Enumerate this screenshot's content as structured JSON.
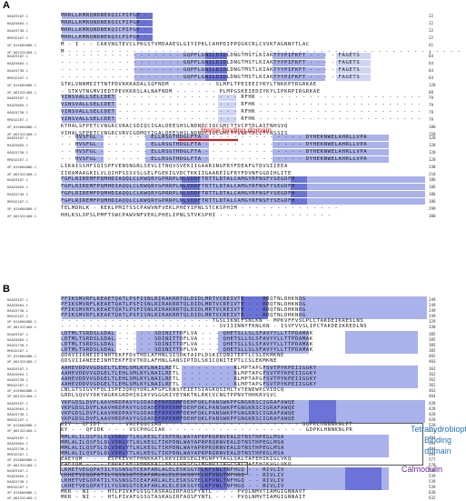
{
  "panels": {
    "a": "A",
    "b": "B"
  },
  "annotations": {
    "heme": "Heme binding domain",
    "thbd_line1": "Tetrahydrobiopterin-",
    "thbd_line2": "Binding domain",
    "calmodulin": "Calmodulin"
  },
  "colors": {
    "strong": "#6b73d8",
    "medium": "#a9b2ea",
    "weak": "#cfd4f4",
    "heme": "#e11111",
    "thbd": "#1f74b8",
    "calm": "#6a2a9b"
  },
  "blocksA": [
    {
      "rows": [
        {
          "name": "RAQ29187.1",
          "seq": "MRRLLKMRQNDNEKQICPIPGP -",
          "num": "22"
        },
        {
          "name": "RAQ25664.1",
          "seq": "MRRLLKMRQNDNEKQICPIPGP -",
          "num": "22"
        },
        {
          "name": "RAQ25730.1",
          "seq": "MRRLLKMRQNDNEKQICPIPGP -",
          "num": "22"
        },
        {
          "name": "RMZ42207.1",
          "seq": "MRRLLKMRQNDNEKQICPIPGP -",
          "num": "22"
        },
        {
          "name": "XP_015604886.1",
          "seq": "M - I - - CAKVNGTEVCLPKGSTVMDAAESLGIYIPKLCAHPDIPPQGKCRLCVVKTAGNNYTLAC",
          "num": "61"
        },
        {
          "name": "XP_001322460.1",
          "seq": "M - - - - - - - - - - - - - - - - - - - - - - - - - - - - - - - - - - - - - - - - - - - - - - - - - - - - - - -",
          "num": "1"
        }
      ]
    },
    {
      "rows": [
        {
          "name": "RAQ29187.1",
          "seq": "- - - - - - - - - - - - - - - - - GQPFLGNILDIDLDNGTMSTLKIAKTYYPIFKFT - - - - FAGETS",
          "num": "64"
        },
        {
          "name": "RAQ25664.1",
          "seq": "- - - - - - - - - - - - - - - - - GQPFLGNILDIDLDNGTMSTLKIAKTYYPIFKFT - - - - FAGETS",
          "num": "64"
        },
        {
          "name": "RAQ25730.1",
          "seq": "- - - - - - - - - - - - - - - - - GQPFLGNILDIDLDNGTMSTLKIAKTYYPIFKFT - - - - FAGETS",
          "num": "64"
        },
        {
          "name": "RMZ42207.1",
          "seq": "- - - - - - - - - - - - - - - - - GQPFLGNILDIDLDNGTMSTLKIAKTYYPIFKFT - - - - FAGETS",
          "num": "64"
        },
        {
          "name": "XP_015604886.1",
          "seq": "STKLVNNMEITTNTPDVKKKADALSQFNDM - - - - - - SLMPLTPEIEEIYKYLTNKKPTRGRKAE",
          "num": "120"
        },
        {
          "name": "XP_001322460.1",
          "seq": "- STKVTNGMVIEDTPEVKKRSLALNAFNDM - - - - - - PLMPGSKEIEDIYKYLIPKRPIRGRKAE",
          "num": "60"
        }
      ]
    },
    {
      "rows": [
        {
          "name": "RAQ29187.1",
          "seq": "VINSVALLSELCDET - - - - - - - - - - - - - - - - - RFHK - - - - - - - - - - - - - - - - - - - - - - -",
          "num": "79"
        },
        {
          "name": "RAQ25664.1",
          "seq": "VINSVALLSELCDET - - - - - - - - - - - - - - - - - RFHK - - - - - - - - - - - - - - - - - - - - - - -",
          "num": "79"
        },
        {
          "name": "RAQ25730.1",
          "seq": "VINSVALLSELCDET - - - - - - - - - - - - - - - - - RFHK - - - - - - - - - - - - - - - - - - - - - - -",
          "num": "79"
        },
        {
          "name": "RMZ42207.1",
          "seq": "VINSVALLSELCDET - - - - - - - - - - - - - - - - - RFHK - - - - - - - - - - - - - - - - - - - - - - -",
          "num": "79"
        },
        {
          "name": "XP_015604886.1",
          "seq": "KTHALSFPETCVNGRCVRACSDIQCIGALDEESHSLNDNDCIQCGMCTTVCPTDLAITNHSVQ",
          "num": "180"
        },
        {
          "name": "XP_001322460.1",
          "seq": "VIHALSFPETCVNGRCVRVCGDMQYIGALDEESHSLNDNDCIQCGMCTTVCPTDCLTYNSSIS",
          "num": "150"
        }
      ]
    },
    {
      "rows": [
        {
          "name": "RAQ29187.1",
          "seq": "- - HVSFGL - - - - - - - ELLRSGTHDGLFTA - - - - - - - - - - - - - - DYHEKNWELAHRLLVPA",
          "num": "120"
        },
        {
          "name": "RAQ25664.1",
          "seq": "- - HVSFGL - - - - - - - ELLRSGTHDGLFTA - - - - - - - - - - - - - - DYHEKNWELAHRLLVPA",
          "num": "120"
        },
        {
          "name": "RAQ25730.1",
          "seq": "- - HVSFGL - - - - - - - ELLRSGTHDGLFTA - - - - - - - - - - - - - - DYHEKNWELAHRLLVPA",
          "num": "120"
        },
        {
          "name": "RMZ42207.1",
          "seq": "- - HVSFGL - - - - - - - ELLRSGTHDGLFTA - - - - - - - - - - - - - - DYHEKNWELAHRLLVPA",
          "num": "120"
        },
        {
          "name": "XP_015604886.1",
          "seq": "LIKAISSHFIQISPFVENSNGRLSEVLITNQVSVEKIIGAARINGFRYFDEAFGTDVSIIEEA",
          "num": "240"
        },
        {
          "name": "XP_001322460.1",
          "seq": "IIRAMAAGKILVLQIHPSSSVSLGELFGEKIGVDCTKKIIGAAREIGFRYFDVNFGGDIHLITE",
          "num": "210"
        }
      ]
    },
    {
      "rows": [
        {
          "name": "RAQ29187.1",
          "seq": "FGPLRIREMFPQMHDIAQQLCLKWQRYGPRRPLNLVDDFTRTTLDTALCAMGYRFNSFYSEGDFH",
          "num": "186"
        },
        {
          "name": "RAQ25664.1",
          "seq": "FGPLRIREMFPQMHDIAQQLCLKWQRYGPRRPLNLVDDFTRTTLDTALCAMGYRFNSFYSEGDFH",
          "num": "186"
        },
        {
          "name": "RAQ25730.1",
          "seq": "FGPLRIREMFPQMHDIAQQLCLKWQRYGPRRPLNLVDDFTRTTLDTALCAMGYRFNSFYSEGDFH",
          "num": "186"
        },
        {
          "name": "RMZ42207.1",
          "seq": "FGPLRIREMFPQMHDIAQQLCLKWQRYGPRRPLNLVDDFTRTTLDTALCAMGYRFNSFYSEGDFH",
          "num": "186"
        },
        {
          "name": "XP_015604886.1",
          "seq": "TELMDRLK - REKLPMITSSCPAWVNFVEKLPHEYIPNLSTCKSPHIM - - - - - - - - - - - - - -",
          "num": "299"
        },
        {
          "name": "XP_001322460.1",
          "seq": "HHLKSLOPSLPMFTSWCPAWVNFVEKLPHELIPNLSTVKSPHI - - - - - - - - - - - - - - - -",
          "num": "300"
        }
      ]
    }
  ],
  "blocksB": [
    {
      "rows": [
        {
          "name": "RAQ29187.1",
          "seq": "PFIKSMVRFLKEAETQATLPSFISNLRIRAKRRTQLDIDLMRTVCREIVTE - - RRQTNLDHKNDG",
          "num": "249"
        },
        {
          "name": "RAQ25664.1",
          "seq": "PFIKSMVRFLKEAETQATLPSFISNLRIRAKRRTQLDIDLMRTVCREIVTE - - RRQTNLDHKNDG",
          "num": "249"
        },
        {
          "name": "RAQ25730.1",
          "seq": "PFIKSMVRFLKEAETQATLPSFISNLRIRAKRRTQLDIDLMRTVCREIVTE - - RRQTNLDHKNDG",
          "num": "249"
        },
        {
          "name": "RMZ42207.1",
          "seq": "PFIKSMVRFLKEAETQATLPSFISNLRIRAKRRTQLDIDLMRTVCREIVTE - - RRQTNLDHKNDG",
          "num": "249"
        },
        {
          "name": "XP_015604886.1",
          "seq": "- - - - - - - - - - - - - - - - - - - - - TGSLIKNCFSNLKN - MPKVFFVSLPLCTAKDEIKRESLNS",
          "num": "329"
        },
        {
          "name": "XP_001322460.1",
          "seq": "- - - - - - - - - - - - - - - - - - - - - - SVIIINNYFKNLKN - ISVFVVSLIPCTAKDEIKREDLNS",
          "num": "330"
        }
      ]
    },
    {
      "rows": [
        {
          "name": "RAQ29187.1",
          "seq": "LDTMLTSRDSLGDAL - - - - - SDINITTDFLVA - - - QHETSLLSLSFAVYYLLTTPDAMAK",
          "num": "305"
        },
        {
          "name": "RAQ25664.1",
          "seq": "LDTMLTSRDSLGDAL - - - - - SDINITTDFLVA - - - QHETSLLSLSFAVYYLLTTPDAMAK",
          "num": "305"
        },
        {
          "name": "RAQ25730.1",
          "seq": "LDTMLTSRDSLGDAL - - - - - SDINITTDFLVA - - - QHETSLLSLSFAVYYLLTTPDAMAK",
          "num": "305"
        },
        {
          "name": "RMZ42207.1",
          "seq": "LDTMLTSRDSLGDAL - - - - - SDINITTDFLVA - - - QHETSLLSLSFAVYYLLTTPDAMAK",
          "num": "305"
        },
        {
          "name": "XP_015604886.1",
          "seq": "QDAVIIANEIEINHTEKFFDVTHDLAFHNLSISDKTAIPLDSKICQNITEPTLCSLEKMKNE",
          "num": "402"
        },
        {
          "name": "XP_001322460.1",
          "seq": "QDSVIIANEEEINHTEKFFDVTKDLAFHNLGANSIPTDLSKICQNITEPTLCSLEKMKNE",
          "num": "403"
        }
      ]
    },
    {
      "rows": [
        {
          "name": "RAQ29187.1",
          "seq": "AAHEVDDVVGDGELTLEHLSMLKYLNAILRETL - - - - - - - RLMPTAPGFSVTPYKPEIIGGKY",
          "num": "362"
        },
        {
          "name": "RAQ25664.1",
          "seq": "AAHEVDDVVGDGELTLEHLSMLKYLNAILRETL - - - - - - - RLMPTAPGFSVTPYKPEIIGGKY",
          "num": "362"
        },
        {
          "name": "RAQ25730.1",
          "seq": "AAHEVDDVVGDGELTLEHLSMLKYLNAILRETL - - - - - - - RLMPTAPGFSVTPYKPEIIGGKY",
          "num": "362"
        },
        {
          "name": "RMZ42207.1",
          "seq": "AAHEVDDVVGDGELTLEHLSMLKYLNAILRETL - - - - - - - RLMPTAPGFSVTPYKPEIIGGKY",
          "num": "362"
        },
        {
          "name": "XP_015604886.1",
          "seq": "LNLGTSIGVYFQLISPEIQRQYDRLAFGPLKNSTEIETSIAGKQSIHLTVTENEWPLVIDCQ",
          "num": "463"
        },
        {
          "name": "XP_001322460.1",
          "seq": "GRDLSQVVYDKYWGRKGKDHIKIAYVGGGKIYEYNKTKLRKCVCNGTPPNVTHHKRVSVC",
          "num": "464"
        }
      ]
    },
    {
      "rows": [
        {
          "name": "RAQ29187.1",
          "seq": "VKPGDSLDVFLAAVHRDPAVYGSDADEFRPERMFDEHFQKLPANSWKPFGNGKRSCIGRAFAWQE",
          "num": "428"
        },
        {
          "name": "RAQ25664.1",
          "seq": "VKPGDSLDVFLAAVHRDPAVYGSDADEFRPERMFDEHFQKLPANSWKPFGNGKRSCIGRAFAWQE",
          "num": "428"
        },
        {
          "name": "RAQ25730.1",
          "seq": "VKPGDSLDVFLAAVHRDPAVYGSDADEFRPERMFDEHFQKLPANSWKPFGNGKRSCIGRAFAWQE",
          "num": "428"
        },
        {
          "name": "RMZ42207.1",
          "seq": "VKPGDSLDVFLAAVHRDPAVYGSDADEFRPERMFDEHFQKLPANSWKPFGNGKRSCIGRAFAWQE",
          "num": "428"
        },
        {
          "name": "XP_015604886.1",
          "seq": "KIY - QFIDT - - - VACPQGCIAB - - - - - - - - - - - - - - - - - - - GQPKLHNNNKNLPF",
          "num": "520"
        },
        {
          "name": "XP_001322460.1",
          "seq": "KY - - QFIDK - - - VSCPHGCIAK - - - - - - - - - - - - - - - - - - - GDPKLHNNKNLPR",
          "num": "521"
        }
      ]
    },
    {
      "rows": [
        {
          "name": "RAQ29187.1",
          "seq": "MMLALILQSFSLDLVDRGYTLKLKESLTIKPDNLWAYAPRPRQRNVEALDTNSTHPEGLMSA",
          "num": "494"
        },
        {
          "name": "RAQ25664.1",
          "seq": "MMLALILQSFSLDLVDRGYTLKLKESLTIKPDNLWAYAPRPRQRNVEALDTNSTHPEGLMSA",
          "num": "494"
        },
        {
          "name": "RAQ25730.1",
          "seq": "MMLALILQSFSLDLVDRGYTLKLKESLTIKPDNLWAYAPRPRQRNVEALDTNSTHPEGLMSA",
          "num": "494"
        },
        {
          "name": "RMZ42207.1",
          "seq": "MMLALILQSFSLDLVDRGYTLKLKESLTIKPDNLWAYAPRPRQRNVEALDTNSTHPEGLMSA",
          "num": "494"
        },
        {
          "name": "XP_015604886.1",
          "seq": "EAEYQM - - - ESPKEVHTPHNKKATLKKVIRRSEGIMGNPYTAGLSALTAFEHIKIGLVKQ",
          "num": "577"
        },
        {
          "name": "XP_001322460.1",
          "seq": "EAEYQM - - - ENPREVHTPHNKKATLKKVIRRSEGIMGNPYTAGLSALTAFEHIKVGLVKQ",
          "num": "578"
        }
      ]
    },
    {
      "rows": [
        {
          "name": "RAQ29187.1",
          "seq": "LKHETVEGQPATILYGSNSGTCEAFARLALELESKSGYELKFVNLTNFHGQ - - RIVLIV",
          "num": "539"
        },
        {
          "name": "RAQ25664.1",
          "seq": "LKHETVEGQPATILYGSNSGTCEAFARLALELESKSGYELKFVNLTNFHGQ - - RIVLIV",
          "num": "539"
        },
        {
          "name": "RAQ25730.1",
          "seq": "LKHETVEGQPATILYGSNSGTCEAFARLALELESKSGYELKFVNLTNFHGQ - - RIVLIV",
          "num": "539"
        },
        {
          "name": "RMZ42207.1",
          "seq": "LKHETVEGQPATILYGSNSGTCEAFARLALELESKSGYELKFVNLTNFHGQ - - RIVLIV",
          "num": "539"
        },
        {
          "name": "XP_015604886.1",
          "seq": "MKR - NI - - HTLPIVAFGSSGTASRAGIRFAQSFYNTL - - - PVQLNMVTIAMGIGNNAVT",
          "num": "630"
        },
        {
          "name": "XP_001322460.1",
          "seq": "MKR - NI - - HTLPIVAFGSSGTASRAGIRFAQSFYNTL - - - PVQLNMVTIAMGIGNNAIT",
          "num": "632"
        }
      ]
    }
  ]
}
